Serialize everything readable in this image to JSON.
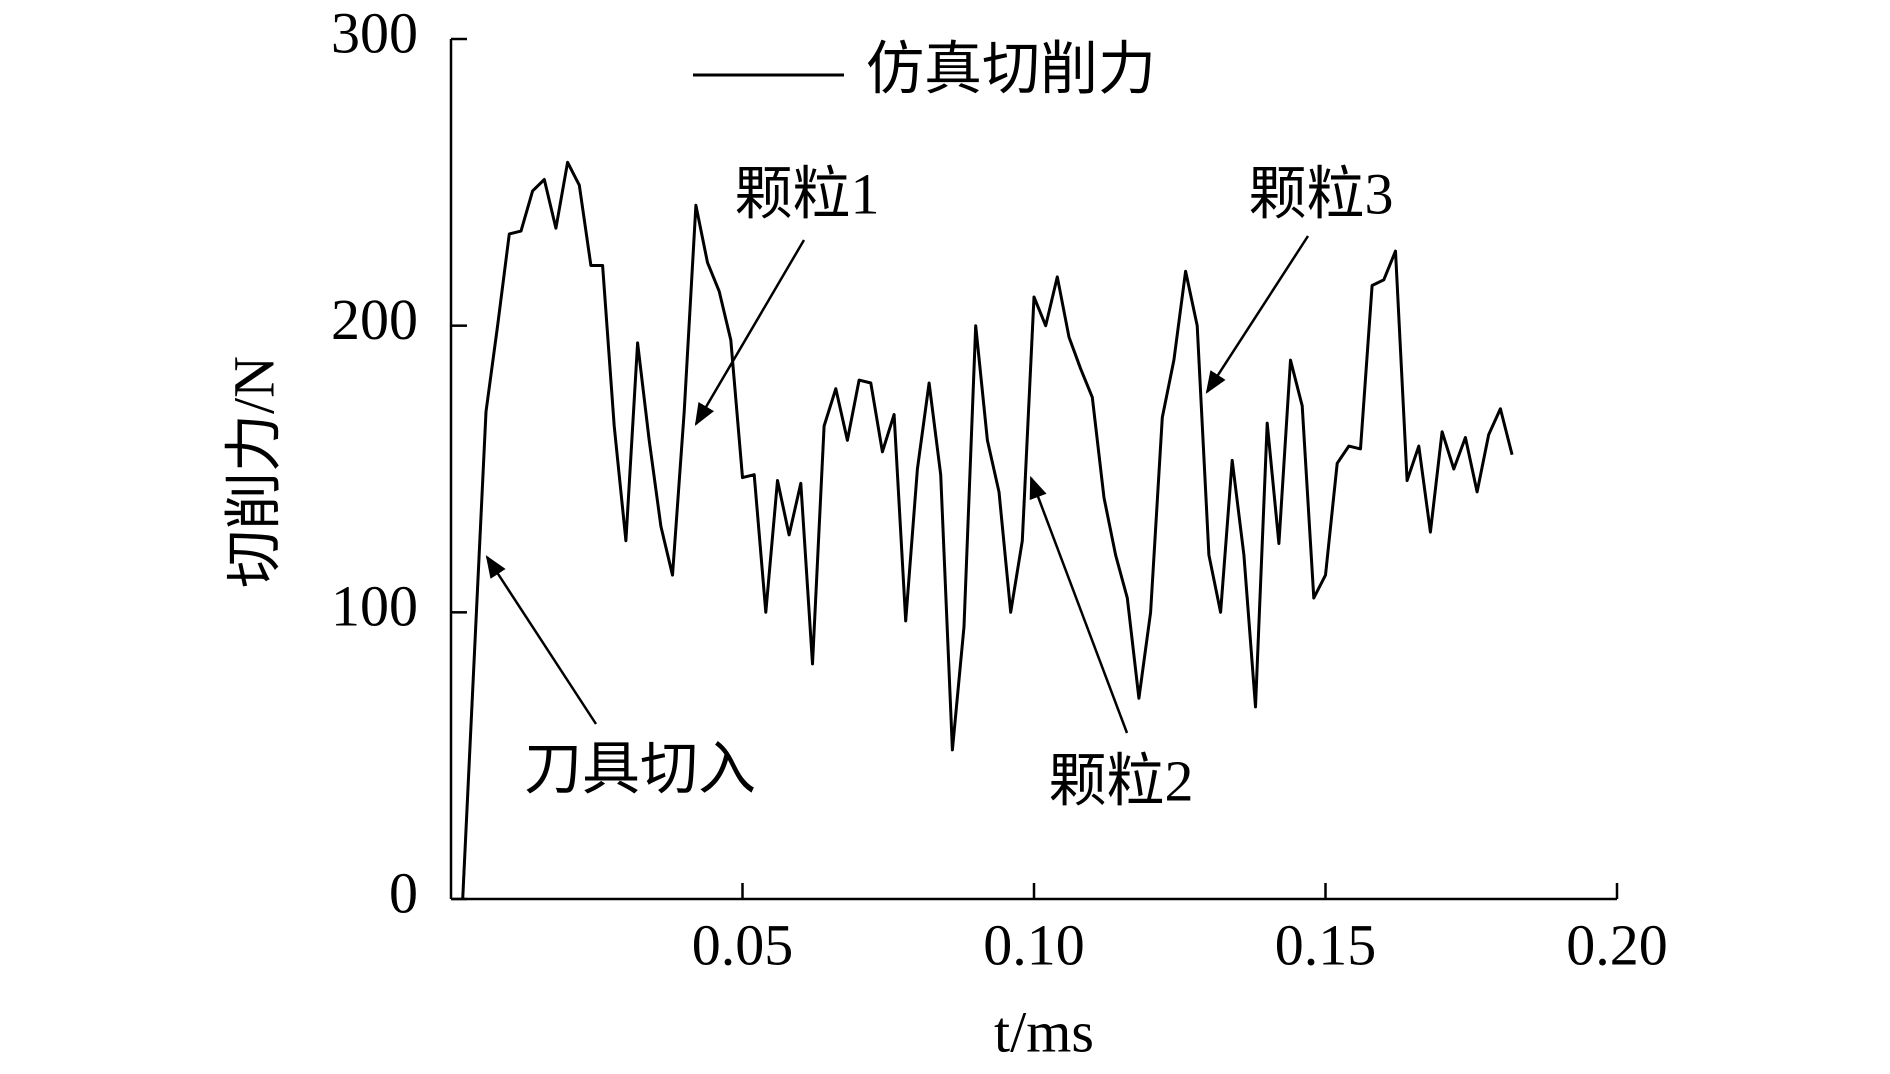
{
  "chart_data": {
    "type": "line",
    "xlabel": "t/ms",
    "ylabel": "切削力/N",
    "x": [
      0.002,
      0.006,
      0.008,
      0.01,
      0.012,
      0.014,
      0.016,
      0.018,
      0.02,
      0.022,
      0.024,
      0.026,
      0.028,
      0.03,
      0.032,
      0.034,
      0.036,
      0.038,
      0.04,
      0.042,
      0.044,
      0.046,
      0.048,
      0.05,
      0.052,
      0.054,
      0.056,
      0.058,
      0.06,
      0.062,
      0.064,
      0.066,
      0.068,
      0.07,
      0.072,
      0.074,
      0.076,
      0.078,
      0.08,
      0.082,
      0.084,
      0.086,
      0.088,
      0.09,
      0.092,
      0.094,
      0.096,
      0.098,
      0.1,
      0.102,
      0.104,
      0.106,
      0.108,
      0.11,
      0.112,
      0.114,
      0.116,
      0.118,
      0.12,
      0.122,
      0.124,
      0.126,
      0.128,
      0.13,
      0.132,
      0.134,
      0.136,
      0.138,
      0.14,
      0.142,
      0.144,
      0.146,
      0.148,
      0.15,
      0.152,
      0.154,
      0.156,
      0.158,
      0.16,
      0.162,
      0.164,
      0.166,
      0.168,
      0.17,
      0.172,
      0.174,
      0.176,
      0.178,
      0.18,
      0.182
    ],
    "series": [
      {
        "name": "仿真切削力",
        "color": "#000000",
        "values": [
          0,
          170,
          200,
          232,
          233,
          247,
          251,
          234,
          257,
          249,
          221,
          221,
          165,
          125,
          194,
          160,
          130,
          113,
          170,
          242,
          222,
          212,
          195,
          147,
          148,
          100,
          146,
          127,
          145,
          82,
          165,
          178,
          160,
          181,
          180,
          156,
          169,
          97,
          150,
          180,
          148,
          52,
          95,
          200,
          160,
          142,
          100,
          125,
          210,
          200,
          217,
          196,
          185,
          175,
          140,
          120,
          105,
          70,
          100,
          168,
          188,
          219,
          200,
          120,
          100,
          153,
          120,
          67,
          166,
          124,
          188,
          172,
          105,
          113,
          152,
          158,
          157,
          214,
          216,
          226,
          146,
          158,
          128,
          163,
          150,
          161,
          142,
          162,
          171,
          155
        ]
      }
    ],
    "xlim": [
      0,
      0.2
    ],
    "xticks": [
      0.05,
      {
        "value": 0.1,
        "label": "0.10"
      },
      0.15,
      {
        "value": 0.2,
        "label": "0.20"
      }
    ],
    "ylim": [
      0,
      300
    ],
    "yticks": [
      0,
      100,
      200,
      300
    ],
    "annotations": [
      "刀具切入",
      "颗粒1",
      "颗粒2",
      "颗粒3"
    ],
    "grid": false,
    "legend": "top"
  }
}
